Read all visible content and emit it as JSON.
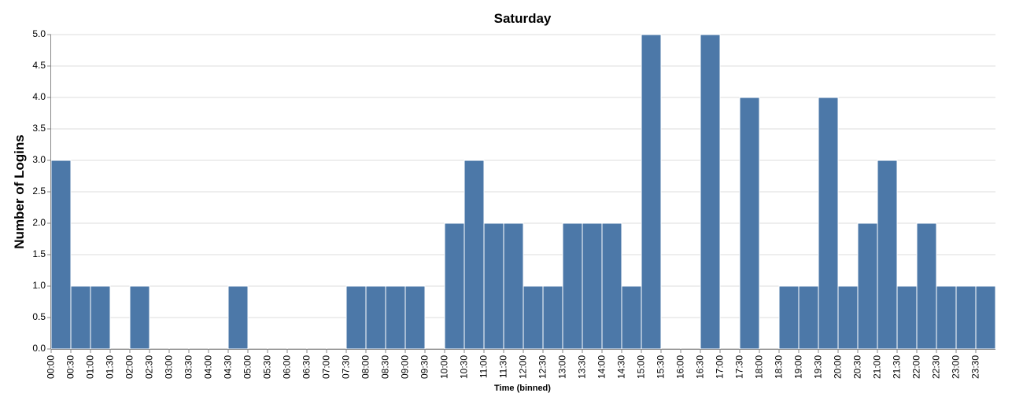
{
  "chart_data": {
    "type": "bar",
    "title": "Saturday",
    "xlabel": "Time (binned)",
    "ylabel": "Number of Logins",
    "ylim": [
      0,
      5
    ],
    "yticks": [
      "0.0",
      "0.5",
      "1.0",
      "1.5",
      "2.0",
      "2.5",
      "3.0",
      "3.5",
      "4.0",
      "4.5",
      "5.0"
    ],
    "grid": true,
    "bar_color": "#4c78a8",
    "categories": [
      "00:00",
      "00:30",
      "01:00",
      "01:30",
      "02:00",
      "02:30",
      "03:00",
      "03:30",
      "04:00",
      "04:30",
      "05:00",
      "05:30",
      "06:00",
      "06:30",
      "07:00",
      "07:30",
      "08:00",
      "08:30",
      "09:00",
      "09:30",
      "10:00",
      "10:30",
      "11:00",
      "11:30",
      "12:00",
      "12:30",
      "13:00",
      "13:30",
      "14:00",
      "14:30",
      "15:00",
      "15:30",
      "16:00",
      "16:30",
      "17:00",
      "17:30",
      "18:00",
      "18:30",
      "19:00",
      "19:30",
      "20:00",
      "20:30",
      "21:00",
      "21:30",
      "22:00",
      "22:30",
      "23:00",
      "23:30"
    ],
    "values": [
      3,
      1,
      1,
      0,
      1,
      0,
      0,
      0,
      0,
      1,
      0,
      0,
      0,
      0,
      0,
      1,
      1,
      1,
      1,
      0,
      2,
      3,
      2,
      2,
      1,
      1,
      2,
      2,
      2,
      1,
      5,
      0,
      0,
      5,
      0,
      4,
      0,
      1,
      1,
      4,
      1,
      2,
      3,
      1,
      2,
      1,
      1,
      1
    ]
  }
}
